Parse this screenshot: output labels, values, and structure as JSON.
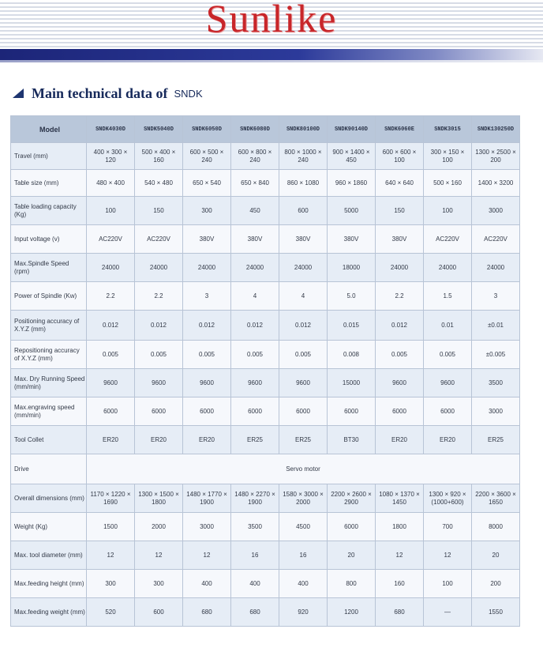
{
  "brand": "Sunlike",
  "section": {
    "title": "Main technical data of",
    "suffix": "SNDK"
  },
  "table": {
    "header_label": "Model",
    "models": [
      "SNDK4030D",
      "SNDK5040D",
      "SNDK6050D",
      "SNDK6080D",
      "SNDK80100D",
      "SNDK90140D",
      "SNDK6060E",
      "SNDK3015",
      "SNDK130250D"
    ],
    "rows": [
      {
        "label": "Travel (mm)",
        "values": [
          "400 × 300 × 120",
          "500 × 400 × 160",
          "600 × 500 × 240",
          "600 × 800 × 240",
          "800 × 1000 × 240",
          "900 × 1400 × 450",
          "600 × 600 × 100",
          "300 × 150 × 100",
          "1300 × 2500 × 200"
        ]
      },
      {
        "label": "Table size (mm)",
        "values": [
          "480 × 400",
          "540 × 480",
          "650 × 540",
          "650 × 840",
          "860 × 1080",
          "960 × 1860",
          "640 × 640",
          "500 × 160",
          "1400 × 3200"
        ]
      },
      {
        "label": "Table loading capacity (Kg)",
        "values": [
          "100",
          "150",
          "300",
          "450",
          "600",
          "5000",
          "150",
          "100",
          "3000"
        ]
      },
      {
        "label": "Input voltage (v)",
        "values": [
          "AC220V",
          "AC220V",
          "380V",
          "380V",
          "380V",
          "380V",
          "380V",
          "AC220V",
          "AC220V"
        ]
      },
      {
        "label": "Max.Spindle Speed (rpm)",
        "values": [
          "24000",
          "24000",
          "24000",
          "24000",
          "24000",
          "18000",
          "24000",
          "24000",
          "24000"
        ]
      },
      {
        "label": "Power of Spindle (Kw)",
        "values": [
          "2.2",
          "2.2",
          "3",
          "4",
          "4",
          "5.0",
          "2.2",
          "1.5",
          "3"
        ]
      },
      {
        "label": "Positioning accuracy of X.Y.Z (mm)",
        "values": [
          "0.012",
          "0.012",
          "0.012",
          "0.012",
          "0.012",
          "0.015",
          "0.012",
          "0.01",
          "±0.01"
        ]
      },
      {
        "label": "Repositioning accuracy of X.Y.Z (mm)",
        "values": [
          "0.005",
          "0.005",
          "0.005",
          "0.005",
          "0.005",
          "0.008",
          "0.005",
          "0.005",
          "±0.005"
        ]
      },
      {
        "label": "Max. Dry Running Speed (mm/min)",
        "values": [
          "9600",
          "9600",
          "9600",
          "9600",
          "9600",
          "15000",
          "9600",
          "9600",
          "3500"
        ]
      },
      {
        "label": "Max.engraving speed (mm/min)",
        "values": [
          "6000",
          "6000",
          "6000",
          "6000",
          "6000",
          "6000",
          "6000",
          "6000",
          "3000"
        ]
      },
      {
        "label": "Tool Collet",
        "values": [
          "ER20",
          "ER20",
          "ER20",
          "ER25",
          "ER25",
          "BT30",
          "ER20",
          "ER20",
          "ER25"
        ]
      },
      {
        "label": "Drive",
        "span_value": "Servo motor"
      },
      {
        "label": "Overall dimensions (mm)",
        "values": [
          "1170 × 1220 × 1690",
          "1300 × 1500 × 1800",
          "1480 × 1770 × 1900",
          "1480 × 2270 × 1900",
          "1580 × 3000 × 2000",
          "2200 × 2600 × 2900",
          "1080 × 1370 × 1450",
          "1300 × 920 × (1000+600)",
          "2200 × 3600 × 1650"
        ]
      },
      {
        "label": "Weight (Kg)",
        "values": [
          "1500",
          "2000",
          "3000",
          "3500",
          "4500",
          "6000",
          "1800",
          "700",
          "8000"
        ]
      },
      {
        "label": "Max. tool diameter (mm)",
        "values": [
          "12",
          "12",
          "12",
          "16",
          "16",
          "20",
          "12",
          "12",
          "20"
        ]
      },
      {
        "label": "Max.feeding height (mm)",
        "values": [
          "300",
          "300",
          "400",
          "400",
          "400",
          "800",
          "160",
          "100",
          "200"
        ]
      },
      {
        "label": "Max.feeding weight (mm)",
        "values": [
          "520",
          "600",
          "680",
          "680",
          "920",
          "1200",
          "680",
          "—",
          "1550"
        ]
      }
    ]
  }
}
